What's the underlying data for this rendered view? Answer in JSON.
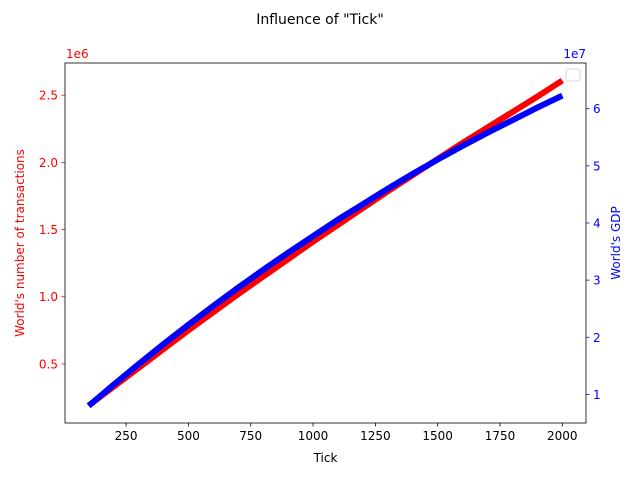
{
  "chart_data": {
    "type": "line",
    "title": "Influence of \"Tick\"",
    "xlabel": "Tick",
    "xlim": [
      5,
      2095
    ],
    "x_ticks": [
      250,
      500,
      750,
      1000,
      1250,
      1500,
      1750,
      2000
    ],
    "x_tick_labels": [
      "250",
      "500",
      "750",
      "1000",
      "1250",
      "1500",
      "1750",
      "2000"
    ],
    "grid": false,
    "legend": {
      "position": "top-right",
      "entries": []
    },
    "axes": {
      "left": {
        "label": "World's number of transactions",
        "color": "#ff0000",
        "offset_text": "1e6",
        "ylim": [
          60000,
          2740000
        ],
        "ticks": [
          500000,
          1000000,
          1500000,
          2000000,
          2500000
        ],
        "tick_labels": [
          "0.5",
          "1.0",
          "1.5",
          "2.0",
          "2.5"
        ]
      },
      "right": {
        "label": "World's GDP",
        "color": "#0000ff",
        "offset_text": "1e7",
        "ylim": [
          5000000,
          68000000
        ],
        "ticks": [
          10000000,
          20000000,
          30000000,
          40000000,
          50000000,
          60000000
        ],
        "tick_labels": [
          "1",
          "2",
          "3",
          "4",
          "5",
          "6"
        ]
      }
    },
    "series": [
      {
        "axis": "left",
        "color": "#ff0000",
        "x": [
          100,
          200,
          300,
          400,
          500,
          600,
          700,
          800,
          900,
          1000,
          1100,
          1200,
          1300,
          1400,
          1500,
          1600,
          1700,
          1800,
          1900,
          2000
        ],
        "values": [
          190000,
          330000,
          470000,
          610000,
          750000,
          885000,
          1020000,
          1150000,
          1280000,
          1410000,
          1535000,
          1660000,
          1785000,
          1905000,
          2025000,
          2145000,
          2260000,
          2375000,
          2490000,
          2610000
        ]
      },
      {
        "axis": "right",
        "color": "#0000ff",
        "x": [
          100,
          200,
          300,
          400,
          500,
          600,
          700,
          800,
          900,
          1000,
          1100,
          1200,
          1300,
          1400,
          1500,
          1600,
          1700,
          1800,
          1900,
          2000
        ],
        "values": [
          8000000,
          11700000,
          15300000,
          18800000,
          22200000,
          25500000,
          28700000,
          31800000,
          34800000,
          37700000,
          40600000,
          43300000,
          46000000,
          48600000,
          51100000,
          53500000,
          55800000,
          58000000,
          60200000,
          62300000
        ]
      }
    ]
  }
}
